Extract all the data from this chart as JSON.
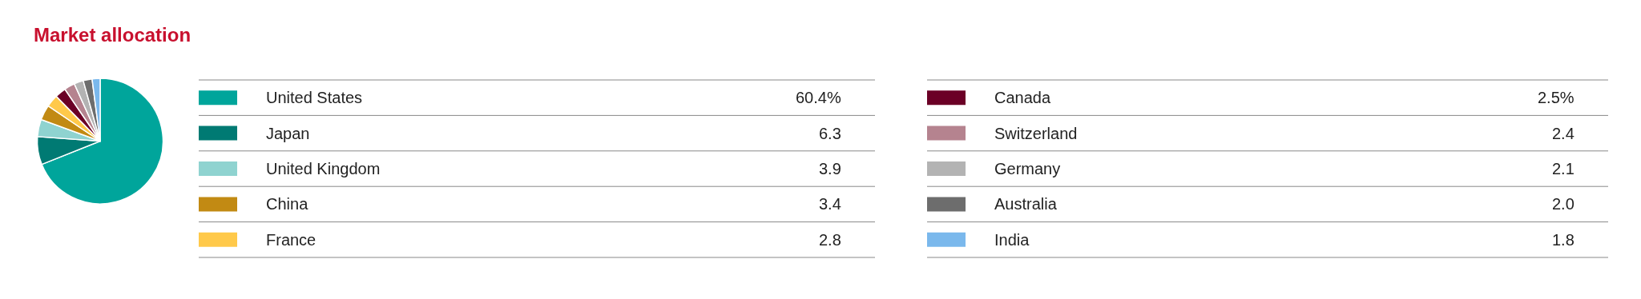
{
  "chart_data": {
    "type": "pie",
    "title": "Market allocation",
    "categories": [
      "United States",
      "Japan",
      "United Kingdom",
      "China",
      "France",
      "Canada",
      "Switzerland",
      "Germany",
      "Australia",
      "India"
    ],
    "values": [
      60.4,
      6.3,
      3.9,
      3.4,
      2.8,
      2.5,
      2.4,
      2.1,
      2.0,
      1.8
    ],
    "value_labels": [
      "60.4%",
      "6.3",
      "3.9",
      "3.4",
      "2.8",
      "2.5%",
      "2.4",
      "2.1",
      "2.0",
      "1.8"
    ],
    "colors": [
      "#00a59b",
      "#007a73",
      "#8fd3d0",
      "#c28a13",
      "#ffc94a",
      "#6b0026",
      "#b5838f",
      "#b3b3b3",
      "#6d6d6d",
      "#7ab8ec"
    ],
    "legend": "right"
  }
}
